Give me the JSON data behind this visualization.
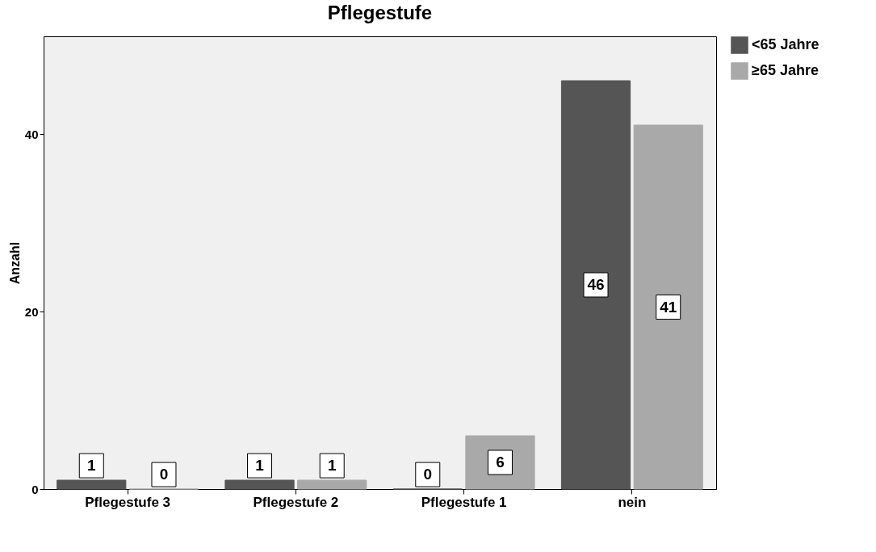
{
  "chart_data": {
    "type": "bar",
    "title": "Pflegestufe",
    "ylabel": "Anzahl",
    "categories": [
      "Pflegestufe 3",
      "Pflegestufe 2",
      "Pflegestufe 1",
      "nein"
    ],
    "series": [
      {
        "name": "<65 Jahre",
        "color": "#555555",
        "values": [
          1,
          1,
          0,
          46
        ]
      },
      {
        "name": "≥65 Jahre",
        "color": "#a9a9a9",
        "values": [
          0,
          1,
          6,
          41
        ]
      }
    ],
    "ylim": [
      0,
      51
    ],
    "yticks": [
      0,
      20,
      40
    ],
    "grid": false,
    "legend": "top right",
    "data_labels": true
  }
}
